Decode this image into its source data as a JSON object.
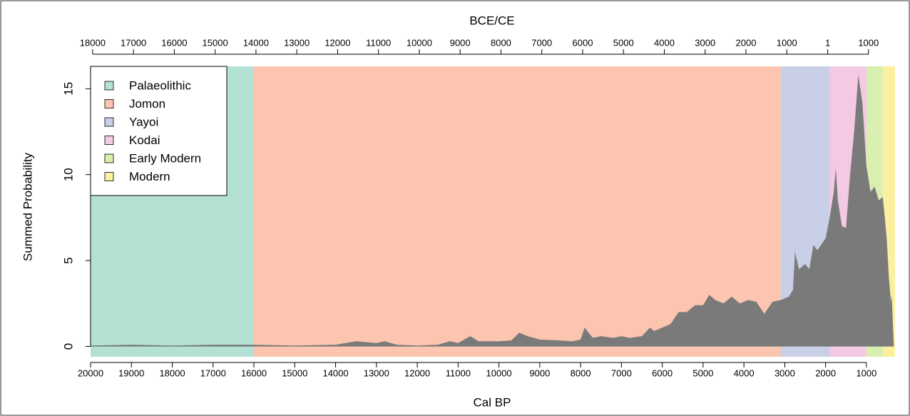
{
  "chart_data": {
    "type": "area",
    "title": "BCE/CE",
    "xlabel": "Cal BP",
    "ylabel": "Summed Probability",
    "xlim": [
      20000,
      300
    ],
    "ylim": [
      -0.6,
      16.3
    ],
    "xticks": [
      20000,
      19000,
      18000,
      17000,
      16000,
      15000,
      14000,
      13000,
      12000,
      11000,
      10000,
      9000,
      8000,
      7000,
      6000,
      5000,
      4000,
      3000,
      2000,
      1000
    ],
    "x2ticks": [
      {
        "value": 19950,
        "label": "18000"
      },
      {
        "value": 18950,
        "label": "17000"
      },
      {
        "value": 17950,
        "label": "16000"
      },
      {
        "value": 16950,
        "label": "15000"
      },
      {
        "value": 15950,
        "label": "14000"
      },
      {
        "value": 14950,
        "label": "13000"
      },
      {
        "value": 13950,
        "label": "12000"
      },
      {
        "value": 12950,
        "label": "11000"
      },
      {
        "value": 11950,
        "label": "10000"
      },
      {
        "value": 10950,
        "label": "9000"
      },
      {
        "value": 9950,
        "label": "8000"
      },
      {
        "value": 8950,
        "label": "7000"
      },
      {
        "value": 7950,
        "label": "6000"
      },
      {
        "value": 6950,
        "label": "5000"
      },
      {
        "value": 5950,
        "label": "4000"
      },
      {
        "value": 4950,
        "label": "3000"
      },
      {
        "value": 3950,
        "label": "2000"
      },
      {
        "value": 2950,
        "label": "1000"
      },
      {
        "value": 1949,
        "label": "1"
      },
      {
        "value": 950,
        "label": "1000"
      }
    ],
    "yticks": [
      0,
      5,
      10,
      15
    ],
    "periods": [
      {
        "name": "Palaeolithic",
        "color": "#b3e2d4",
        "start": 20000,
        "end": 16000
      },
      {
        "name": "Jomon",
        "color": "#fcc5b0",
        "start": 16000,
        "end": 3100
      },
      {
        "name": "Yayoi",
        "color": "#c8cfe6",
        "start": 3100,
        "end": 1900
      },
      {
        "name": "Kodai",
        "color": "#f3c9e4",
        "start": 1900,
        "end": 1000
      },
      {
        "name": "Early Modern",
        "color": "#d9efb0",
        "start": 1000,
        "end": 600
      },
      {
        "name": "Modern",
        "color": "#fcf0a0",
        "start": 600,
        "end": 300
      }
    ],
    "color": "#7a7a7a",
    "x": [
      20000,
      19000,
      18000,
      17000,
      16000,
      15000,
      14000,
      13500,
      13000,
      12800,
      12500,
      12000,
      11500,
      11200,
      11000,
      10700,
      10500,
      10000,
      9700,
      9500,
      9300,
      9000,
      8500,
      8200,
      8000,
      7900,
      7700,
      7500,
      7200,
      7000,
      6800,
      6500,
      6300,
      6200,
      6000,
      5800,
      5600,
      5400,
      5200,
      5000,
      4850,
      4700,
      4500,
      4300,
      4100,
      3900,
      3700,
      3500,
      3300,
      3100,
      2900,
      2800,
      2750,
      2650,
      2500,
      2400,
      2300,
      2200,
      2000,
      1900,
      1800,
      1750,
      1700,
      1600,
      1500,
      1400,
      1300,
      1200,
      1100,
      1000,
      900,
      800,
      700,
      600,
      550,
      500,
      450,
      400,
      380,
      330
    ],
    "values": [
      0.05,
      0.1,
      0.05,
      0.1,
      0.1,
      0.05,
      0.1,
      0.3,
      0.2,
      0.3,
      0.1,
      0.05,
      0.1,
      0.3,
      0.2,
      0.6,
      0.3,
      0.3,
      0.35,
      0.8,
      0.6,
      0.4,
      0.35,
      0.3,
      0.4,
      1.1,
      0.5,
      0.6,
      0.5,
      0.6,
      0.5,
      0.6,
      1.1,
      0.9,
      1.1,
      1.3,
      2.0,
      2.0,
      2.4,
      2.4,
      3.0,
      2.7,
      2.5,
      2.9,
      2.5,
      2.7,
      2.6,
      1.9,
      2.6,
      2.7,
      2.9,
      3.3,
      5.5,
      4.5,
      4.8,
      4.5,
      5.9,
      5.6,
      6.3,
      7.5,
      9.0,
      10.4,
      8.5,
      7.0,
      6.9,
      10.0,
      12.5,
      15.8,
      14.2,
      10.5,
      9.0,
      9.3,
      8.5,
      8.7,
      7.5,
      6.2,
      4.0,
      2.6,
      3.0,
      0
    ]
  }
}
